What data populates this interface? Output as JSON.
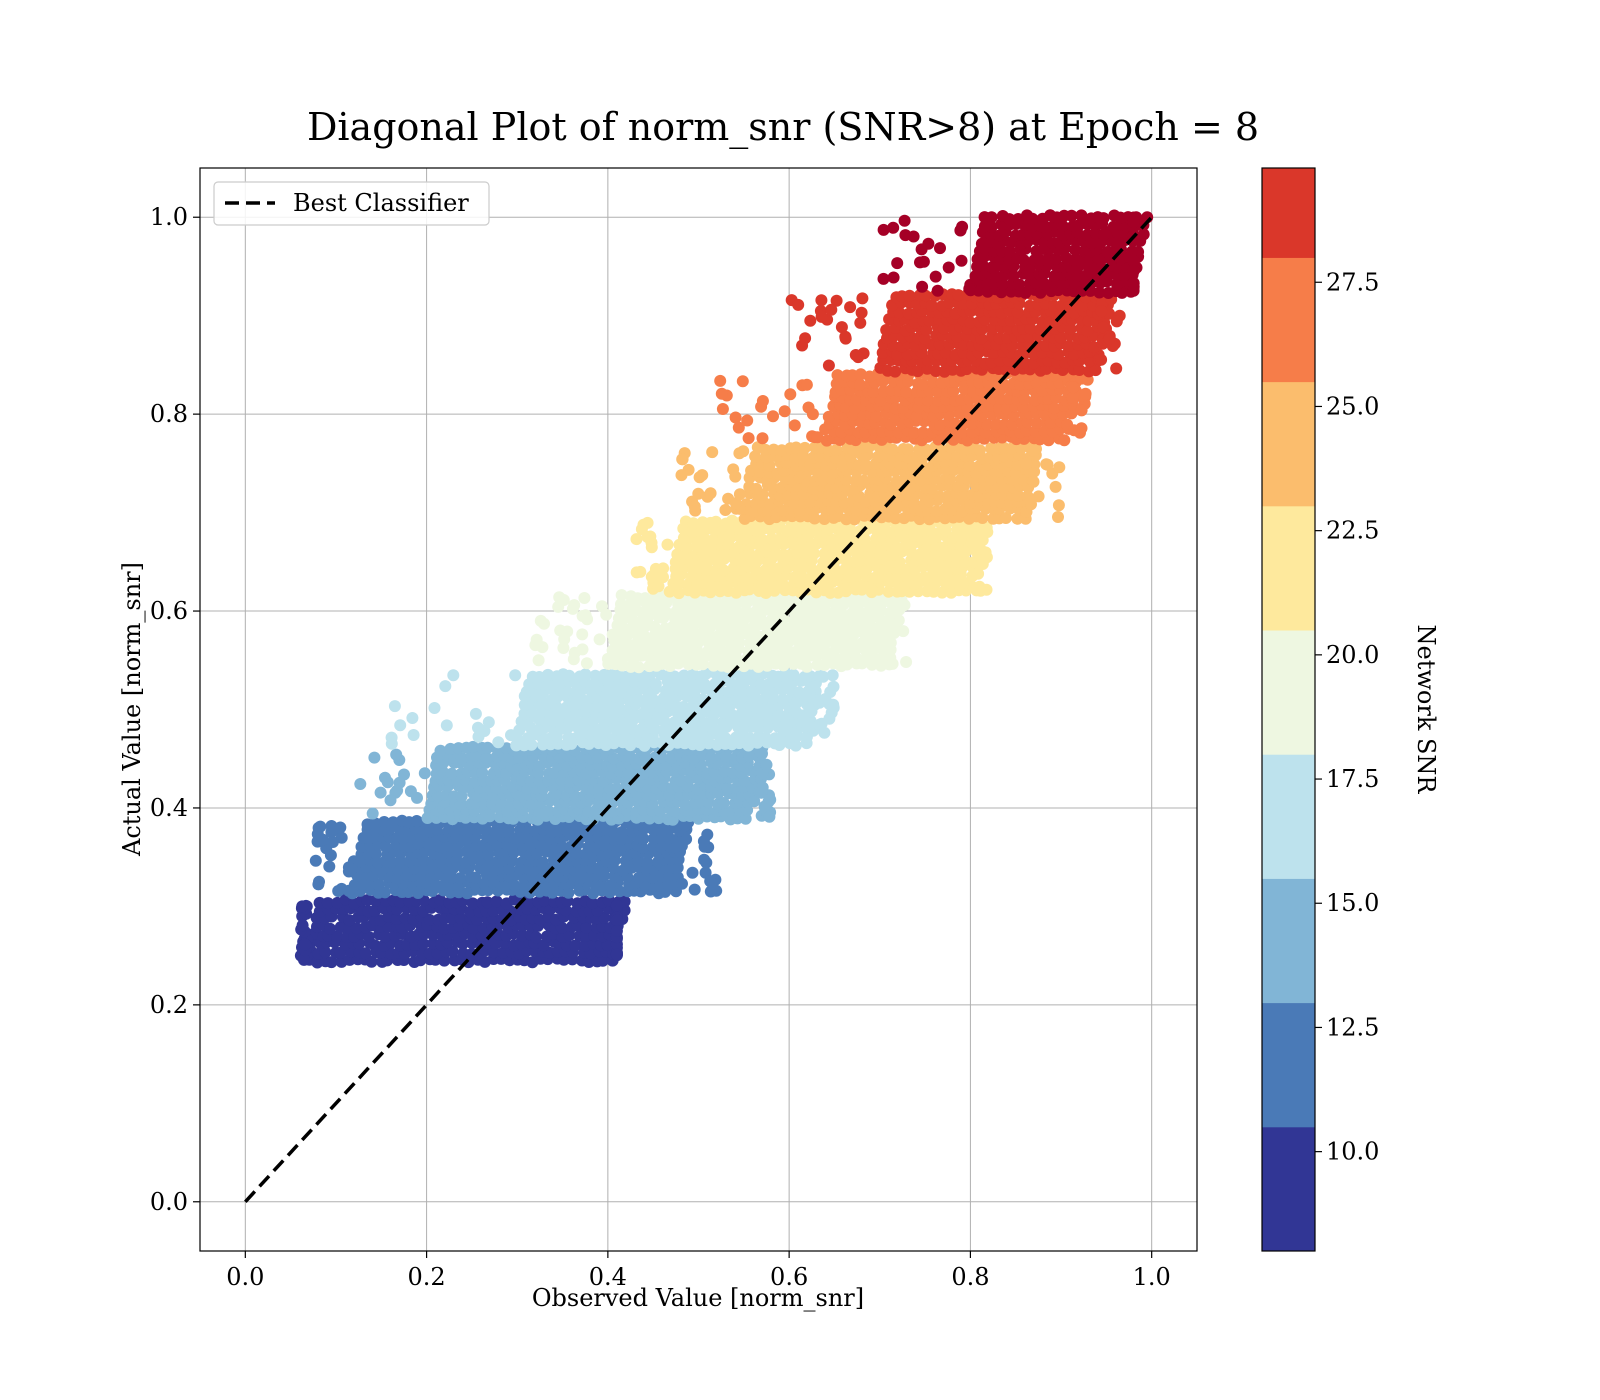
{
  "chart_data": {
    "type": "scatter",
    "title": "Diagonal Plot of norm_snr (SNR>8) at Epoch = 8",
    "xlabel": "Observed Value [norm_snr]",
    "ylabel": "Actual Value [norm_snr]",
    "xlim": [
      -0.05,
      1.05
    ],
    "ylim": [
      -0.05,
      1.05
    ],
    "x_ticks": [
      "0.0",
      "0.2",
      "0.4",
      "0.6",
      "0.8",
      "1.0"
    ],
    "y_ticks": [
      "0.0",
      "0.2",
      "0.4",
      "0.6",
      "0.8",
      "1.0"
    ],
    "grid": true,
    "legend": {
      "position": "upper left",
      "entries": [
        "Best Classifier"
      ]
    },
    "reference_line": {
      "name": "Best Classifier",
      "style": "dashed",
      "color": "#000000",
      "x": [
        0,
        1
      ],
      "y": [
        0,
        1
      ]
    },
    "colorbar": {
      "label": "Network SNR",
      "range": [
        8,
        29.8
      ],
      "ticks": [
        "10.0",
        "12.5",
        "15.0",
        "17.5",
        "20.0",
        "22.5",
        "25.0",
        "27.5"
      ],
      "tick_values": [
        10.0,
        12.5,
        15.0,
        17.5,
        20.0,
        22.5,
        25.0,
        27.5
      ]
    },
    "bands": [
      {
        "snr_range": [
          8.0,
          10.5
        ],
        "color": "#313695",
        "y_range": [
          0.245,
          0.305
        ],
        "x_core": [
          0.07,
          0.41
        ],
        "x_spread": [
          0.06,
          0.41
        ]
      },
      {
        "snr_range": [
          10.5,
          13.0
        ],
        "color": "#4a7ab7",
        "y_range": [
          0.315,
          0.385
        ],
        "x_core": [
          0.12,
          0.48
        ],
        "x_spread": [
          0.075,
          0.52
        ]
      },
      {
        "snr_range": [
          13.0,
          15.5
        ],
        "color": "#81b5d6",
        "y_range": [
          0.39,
          0.46
        ],
        "x_core": [
          0.2,
          0.56
        ],
        "x_spread": [
          0.11,
          0.58
        ]
      },
      {
        "snr_range": [
          15.5,
          18.0
        ],
        "color": "#bde2ed",
        "y_range": [
          0.465,
          0.535
        ],
        "x_core": [
          0.3,
          0.62
        ],
        "x_spread": [
          0.14,
          0.65
        ]
      },
      {
        "snr_range": [
          18.0,
          20.5
        ],
        "color": "#eef7e1",
        "y_range": [
          0.545,
          0.615
        ],
        "x_core": [
          0.4,
          0.71
        ],
        "x_spread": [
          0.32,
          0.73
        ]
      },
      {
        "snr_range": [
          20.5,
          23.0
        ],
        "color": "#fee99d",
        "y_range": [
          0.62,
          0.69
        ],
        "x_core": [
          0.47,
          0.8
        ],
        "x_spread": [
          0.43,
          0.82
        ]
      },
      {
        "snr_range": [
          23.0,
          25.5
        ],
        "color": "#fbbd6d",
        "y_range": [
          0.695,
          0.765
        ],
        "x_core": [
          0.55,
          0.86
        ],
        "x_spread": [
          0.48,
          0.9
        ]
      },
      {
        "snr_range": [
          25.5,
          28.0
        ],
        "color": "#f67d49",
        "y_range": [
          0.775,
          0.84
        ],
        "x_core": [
          0.64,
          0.91
        ],
        "x_spread": [
          0.52,
          0.93
        ]
      },
      {
        "snr_range": [
          28.0,
          29.8
        ],
        "color": "#da372a",
        "y_range": [
          0.845,
          0.92
        ],
        "x_core": [
          0.7,
          0.94
        ],
        "x_spread": [
          0.6,
          0.97
        ]
      },
      {
        "snr_range": [
          29.8,
          32.0
        ],
        "color": "#a50026",
        "y_range": [
          0.925,
          1.0
        ],
        "x_core": [
          0.8,
          0.98
        ],
        "x_spread": [
          0.7,
          0.98
        ]
      }
    ]
  }
}
